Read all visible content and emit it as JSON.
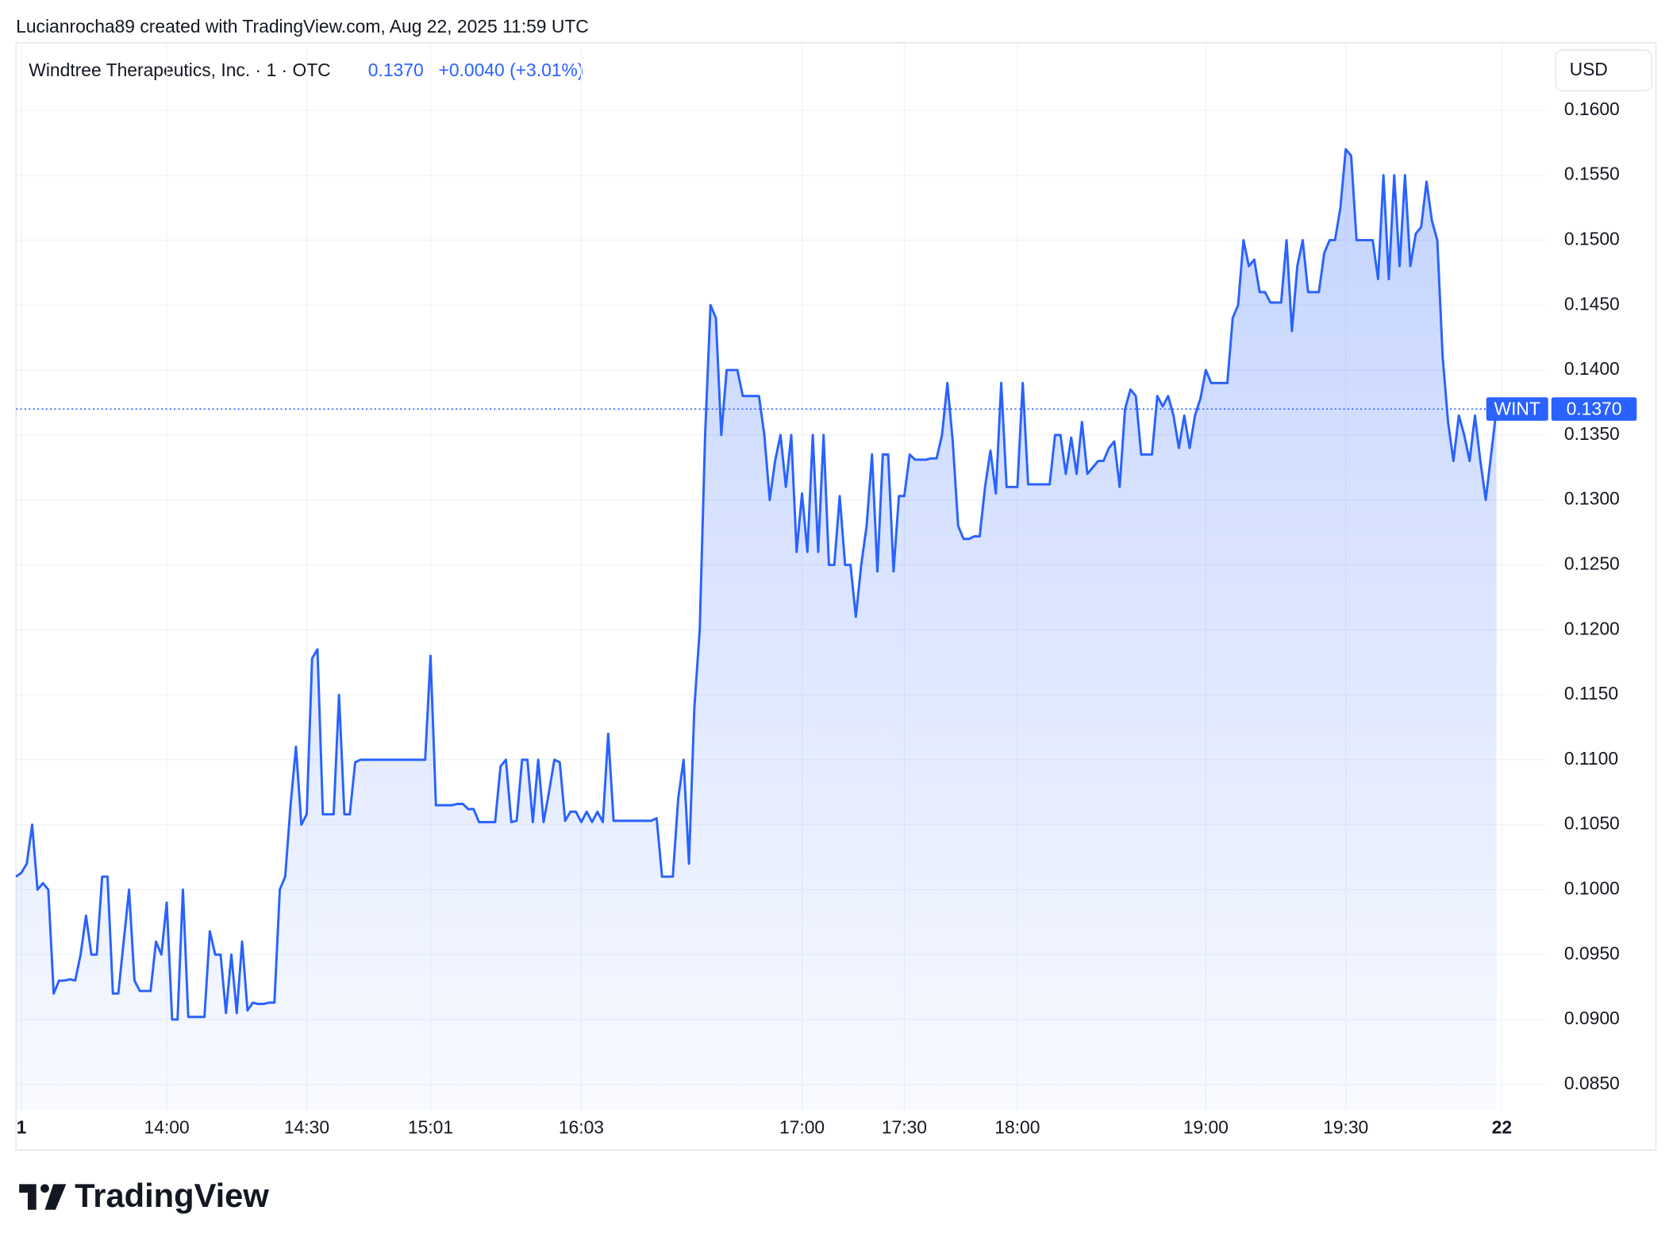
{
  "chart_data": {
    "type": "line",
    "attribution": "Lucianrocha89 created with TradingView.com, Aug 22, 2025 11:59 UTC",
    "title": "Windtree Therapeutics, Inc. · 1 · OTC",
    "price": "0.1370",
    "change": "+0.0040 (+3.01%)",
    "currency": "USD",
    "brand": "TradingView",
    "symbol": "WINT",
    "last_price": {
      "value": 0.137,
      "label": "0.1370"
    },
    "grid": true,
    "series": [
      {
        "name": "WINT",
        "color": "#2962ff",
        "values": [
          0.101,
          0.1013,
          0.102,
          0.105,
          0.1,
          0.1005,
          0.1,
          0.092,
          0.093,
          0.093,
          0.0931,
          0.093,
          0.095,
          0.098,
          0.095,
          0.095,
          0.101,
          0.101,
          0.092,
          0.092,
          0.096,
          0.1,
          0.093,
          0.0922,
          0.0922,
          0.0922,
          0.096,
          0.095,
          0.099,
          0.09,
          0.09,
          0.1,
          0.0902,
          0.0902,
          0.0902,
          0.0902,
          0.0968,
          0.095,
          0.095,
          0.0905,
          0.095,
          0.0905,
          0.096,
          0.0907,
          0.0913,
          0.0912,
          0.0912,
          0.0913,
          0.0913,
          0.1,
          0.101,
          0.1065,
          0.111,
          0.105,
          0.1058,
          0.1178,
          0.1185,
          0.1058,
          0.1058,
          0.1058,
          0.115,
          0.1058,
          0.1058,
          0.1098,
          0.11,
          0.11,
          0.11,
          0.11,
          0.11,
          0.11,
          0.11,
          0.11,
          0.11,
          0.11,
          0.11,
          0.11,
          0.11,
          0.118,
          0.1065,
          0.1065,
          0.1065,
          0.1065,
          0.1066,
          0.1066,
          0.1062,
          0.1062,
          0.1052,
          0.1052,
          0.1052,
          0.1052,
          0.1095,
          0.11,
          0.1052,
          0.1053,
          0.11,
          0.11,
          0.1052,
          0.11,
          0.1052,
          0.1075,
          0.11,
          0.1098,
          0.1053,
          0.106,
          0.106,
          0.1052,
          0.106,
          0.1052,
          0.106,
          0.1052,
          0.112,
          0.1053,
          0.1053,
          0.1053,
          0.1053,
          0.1053,
          0.1053,
          0.1053,
          0.1053,
          0.1055,
          0.101,
          0.101,
          0.101,
          0.107,
          0.11,
          0.102,
          0.114,
          0.12,
          0.135,
          0.145,
          0.144,
          0.135,
          0.14,
          0.14,
          0.14,
          0.138,
          0.138,
          0.138,
          0.138,
          0.135,
          0.13,
          0.133,
          0.135,
          0.131,
          0.135,
          0.126,
          0.1305,
          0.126,
          0.135,
          0.126,
          0.135,
          0.125,
          0.125,
          0.1303,
          0.125,
          0.125,
          0.121,
          0.125,
          0.128,
          0.1335,
          0.1245,
          0.1335,
          0.1335,
          0.1245,
          0.1303,
          0.1303,
          0.1335,
          0.1331,
          0.1331,
          0.1331,
          0.1332,
          0.1332,
          0.135,
          0.139,
          0.1345,
          0.128,
          0.127,
          0.127,
          0.1272,
          0.1272,
          0.131,
          0.1338,
          0.1305,
          0.139,
          0.131,
          0.131,
          0.131,
          0.139,
          0.1312,
          0.1312,
          0.1312,
          0.1312,
          0.1312,
          0.135,
          0.135,
          0.132,
          0.1348,
          0.132,
          0.136,
          0.132,
          0.1325,
          0.133,
          0.133,
          0.134,
          0.1345,
          0.131,
          0.137,
          0.1385,
          0.138,
          0.1335,
          0.1335,
          0.1335,
          0.138,
          0.1372,
          0.138,
          0.1365,
          0.134,
          0.1365,
          0.134,
          0.1365,
          0.1378,
          0.14,
          0.139,
          0.139,
          0.139,
          0.139,
          0.144,
          0.145,
          0.15,
          0.148,
          0.1485,
          0.146,
          0.146,
          0.1452,
          0.1452,
          0.1452,
          0.15,
          0.143,
          0.148,
          0.15,
          0.146,
          0.146,
          0.146,
          0.149,
          0.15,
          0.15,
          0.1525,
          0.157,
          0.1565,
          0.15,
          0.15,
          0.15,
          0.15,
          0.147,
          0.155,
          0.147,
          0.155,
          0.148,
          0.155,
          0.148,
          0.1505,
          0.151,
          0.1545,
          0.1515,
          0.15,
          0.141,
          0.136,
          0.133,
          0.1365,
          0.135,
          0.133,
          0.1365,
          0.133,
          0.13,
          0.1335,
          0.137
        ]
      }
    ],
    "xlim": [
      0,
      284
    ],
    "xticks": [
      1,
      {
        "value": 28,
        "label": "14:00"
      },
      {
        "value": 54,
        "label": "14:30"
      },
      {
        "value": 77,
        "label": "15:01"
      },
      {
        "value": 105,
        "label": "16:03"
      },
      {
        "value": 146,
        "label": "17:00"
      },
      {
        "value": 165,
        "label": "17:30"
      },
      {
        "value": 186,
        "label": "18:00"
      },
      {
        "value": 221,
        "label": "19:00"
      },
      {
        "value": 247,
        "label": "19:30"
      },
      {
        "value": 276,
        "label": "22"
      }
    ],
    "ylim": [
      0.083,
      0.1652
    ],
    "yticks": [
      {
        "value": 0.085,
        "label": "0.0850"
      },
      {
        "value": 0.09,
        "label": "0.0900"
      },
      {
        "value": 0.095,
        "label": "0.0950"
      },
      {
        "value": 0.1,
        "label": "0.1000"
      },
      {
        "value": 0.105,
        "label": "0.1050"
      },
      {
        "value": 0.11,
        "label": "0.1100"
      },
      {
        "value": 0.115,
        "label": "0.1150"
      },
      {
        "value": 0.12,
        "label": "0.1200"
      },
      {
        "value": 0.125,
        "label": "0.1250"
      },
      {
        "value": 0.13,
        "label": "0.1300"
      },
      {
        "value": 0.135,
        "label": "0.1350"
      },
      {
        "value": 0.14,
        "label": "0.1400"
      },
      {
        "value": 0.145,
        "label": "0.1450"
      },
      {
        "value": 0.15,
        "label": "0.1500"
      },
      {
        "value": 0.155,
        "label": "0.1550"
      },
      {
        "value": 0.16,
        "label": "0.1600"
      }
    ]
  }
}
